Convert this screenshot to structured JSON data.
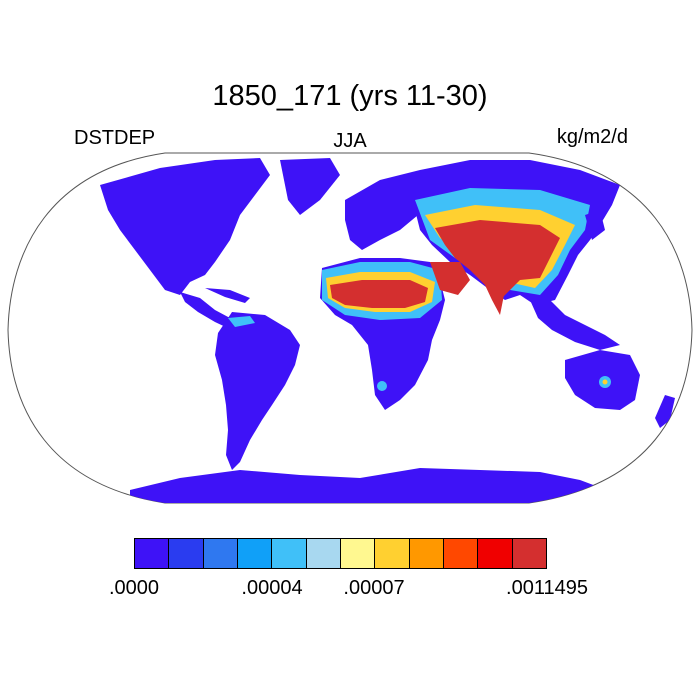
{
  "title": "1850_171 (yrs 11-30)",
  "left_label": "DSTDEP",
  "center_label": "JJA",
  "right_label": "kg/m2/d",
  "colors": {
    "ocean": "#ffffff",
    "low": "#3e12f7",
    "high": "#d42f2f"
  },
  "legend": {
    "colors": [
      "#3e12f7",
      "#2a3cf0",
      "#2f78f0",
      "#10a0f8",
      "#40c0f8",
      "#a8d8f0",
      "#fff890",
      "#ffd030",
      "#ff9800",
      "#ff4800",
      "#f00000",
      "#d42f2f"
    ],
    "tick_labels": [
      ".0000",
      ".00004",
      ".00007",
      ".0011495"
    ]
  }
}
